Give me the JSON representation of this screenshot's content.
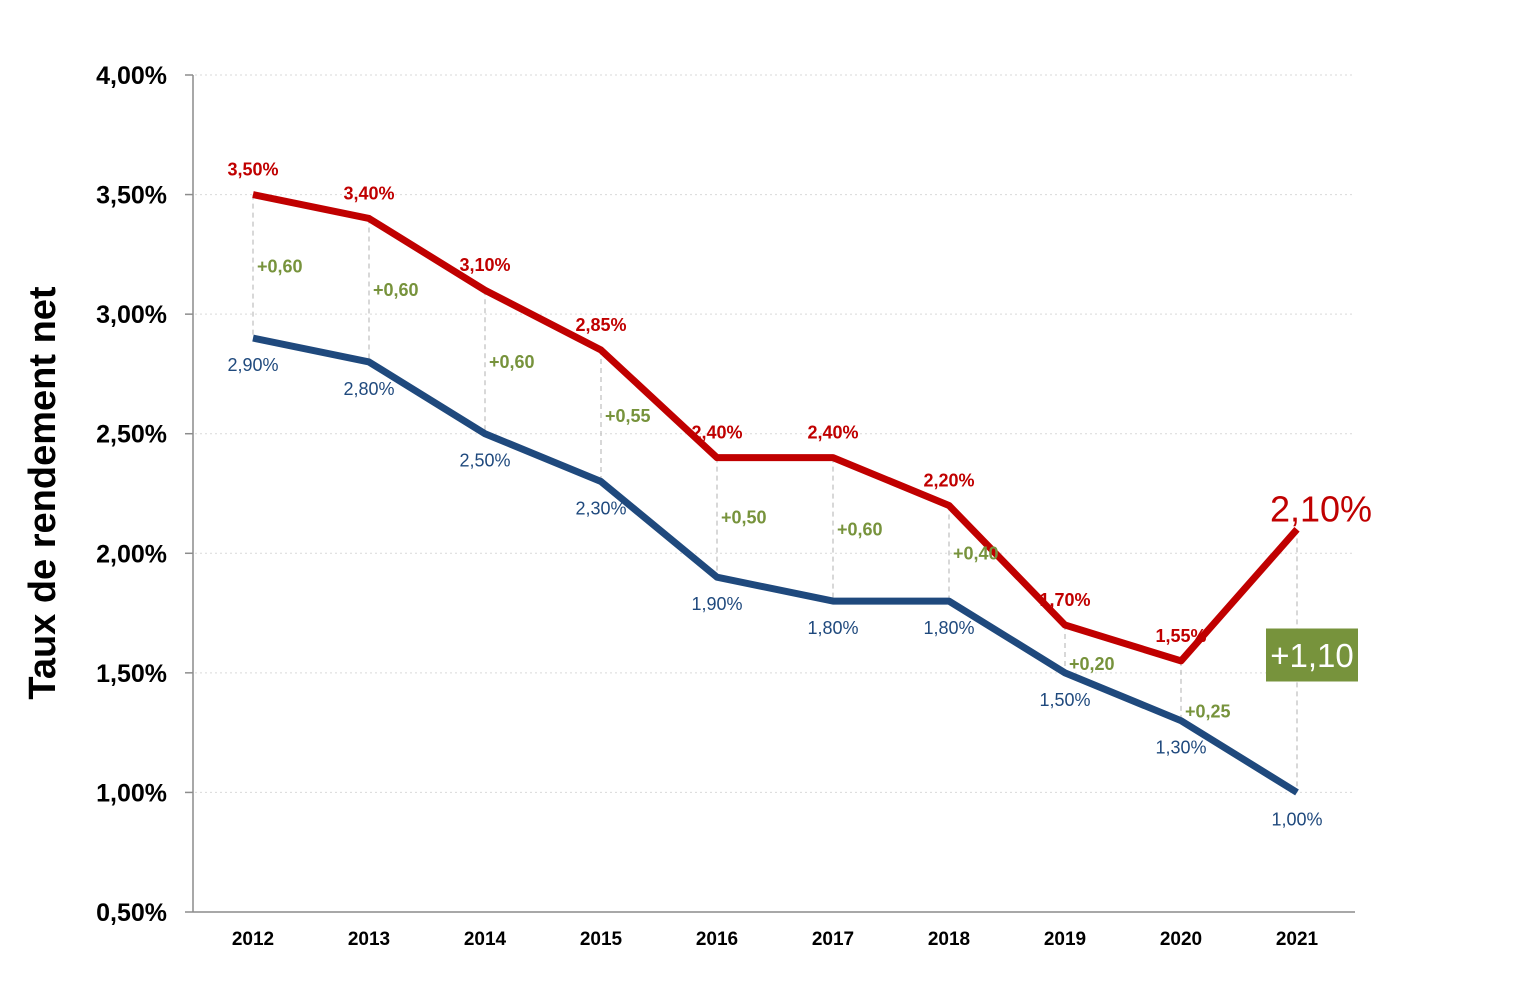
{
  "chart_data": {
    "type": "line",
    "ylabel": "Taux de rendement net",
    "ylim": [
      0.5,
      4.0
    ],
    "y_ticks": [
      "0,50%",
      "1,00%",
      "1,50%",
      "2,00%",
      "2,50%",
      "3,00%",
      "3,50%",
      "4,00%"
    ],
    "y_tick_values": [
      0.5,
      1.0,
      1.5,
      2.0,
      2.5,
      3.0,
      3.5,
      4.0
    ],
    "grid": true,
    "categories": [
      "2012",
      "2013",
      "2014",
      "2015",
      "2016",
      "2017",
      "2018",
      "2019",
      "2020",
      "2021"
    ],
    "series": [
      {
        "values": [
          3.5,
          3.4,
          3.1,
          2.85,
          2.4,
          2.4,
          2.2,
          1.7,
          1.55,
          2.1
        ],
        "labels": [
          "3,50%",
          "3,40%",
          "3,10%",
          "2,85%",
          "2,40%",
          "2,40%",
          "2,20%",
          "1,70%",
          "1,55%",
          "2,10%"
        ],
        "color": "#c00000"
      },
      {
        "values": [
          2.9,
          2.8,
          2.5,
          2.3,
          1.9,
          1.8,
          1.8,
          1.5,
          1.3,
          1.0
        ],
        "labels": [
          "2,90%",
          "2,80%",
          "2,50%",
          "2,30%",
          "1,90%",
          "1,80%",
          "1,80%",
          "1,50%",
          "1,30%",
          "1,00%"
        ],
        "color": "#1f497d"
      }
    ],
    "differences": [
      "+0,60",
      "+0,60",
      "+0,60",
      "+0,55",
      "+0,50",
      "+0,60",
      "+0,40",
      "+0,20",
      "+0,25",
      "+1,10"
    ],
    "difference_color": "#77933c"
  }
}
